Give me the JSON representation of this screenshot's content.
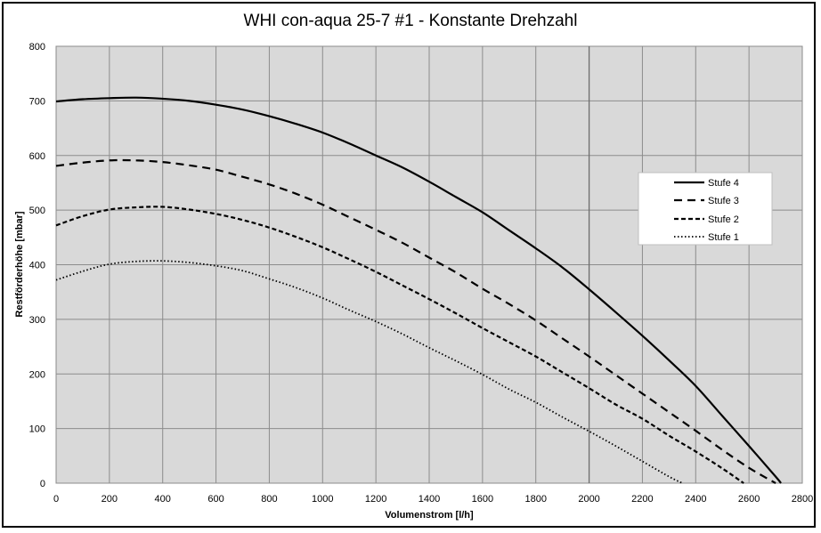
{
  "chart_data": {
    "type": "line",
    "title": "WHI con-aqua 25-7 #1 - Konstante Drehzahl",
    "xlabel": "Volumenstrom  [l/h]",
    "ylabel": "Restförderhöhe  [mbar]",
    "xlim": [
      0,
      2800
    ],
    "ylim": [
      0,
      800
    ],
    "xticks": [
      0,
      200,
      400,
      600,
      800,
      1000,
      1200,
      1400,
      1600,
      1800,
      2000,
      2200,
      2400,
      2600,
      2800
    ],
    "yticks": [
      0,
      100,
      200,
      300,
      400,
      500,
      600,
      700,
      800
    ],
    "grid": true,
    "marker_line_x": 2000,
    "legend_position": "right",
    "series": [
      {
        "name": "Stufe 4",
        "style": "solid",
        "x": [
          0,
          100,
          200,
          300,
          400,
          500,
          600,
          700,
          800,
          900,
          1000,
          1100,
          1200,
          1300,
          1400,
          1500,
          1600,
          1700,
          1800,
          1900,
          2000,
          2100,
          2200,
          2300,
          2400,
          2500,
          2600,
          2700,
          2720
        ],
        "y": [
          699,
          703,
          705,
          706,
          704,
          700,
          693,
          684,
          672,
          658,
          642,
          622,
          600,
          578,
          552,
          524,
          496,
          463,
          430,
          395,
          355,
          313,
          270,
          225,
          178,
          123,
          68,
          12,
          0
        ]
      },
      {
        "name": "Stufe 3",
        "style": "dash",
        "x": [
          0,
          100,
          200,
          300,
          400,
          500,
          600,
          700,
          800,
          900,
          1000,
          1100,
          1200,
          1300,
          1400,
          1500,
          1600,
          1700,
          1800,
          1900,
          2000,
          2100,
          2200,
          2300,
          2400,
          2500,
          2600,
          2700
        ],
        "y": [
          581,
          587,
          591,
          591,
          588,
          582,
          574,
          561,
          547,
          530,
          510,
          487,
          464,
          440,
          413,
          386,
          356,
          328,
          298,
          265,
          232,
          198,
          164,
          130,
          96,
          61,
          28,
          0
        ]
      },
      {
        "name": "Stufe 2",
        "style": "shortdash",
        "x": [
          0,
          100,
          200,
          300,
          400,
          500,
          600,
          700,
          800,
          900,
          1000,
          1100,
          1200,
          1300,
          1400,
          1500,
          1600,
          1700,
          1800,
          1900,
          2000,
          2100,
          2200,
          2300,
          2400,
          2500,
          2580
        ],
        "y": [
          472,
          489,
          501,
          505,
          506,
          501,
          493,
          482,
          468,
          451,
          432,
          410,
          387,
          362,
          337,
          311,
          284,
          258,
          232,
          203,
          174,
          144,
          118,
          87,
          58,
          27,
          0
        ]
      },
      {
        "name": "Stufe 1",
        "style": "dot",
        "x": [
          0,
          100,
          200,
          300,
          400,
          500,
          600,
          700,
          800,
          900,
          1000,
          1100,
          1200,
          1300,
          1400,
          1500,
          1600,
          1700,
          1800,
          1900,
          2000,
          2100,
          2200,
          2300,
          2350
        ],
        "y": [
          372,
          388,
          401,
          406,
          407,
          404,
          398,
          389,
          374,
          358,
          339,
          317,
          296,
          273,
          248,
          224,
          199,
          172,
          148,
          121,
          95,
          68,
          40,
          12,
          0
        ]
      }
    ]
  }
}
